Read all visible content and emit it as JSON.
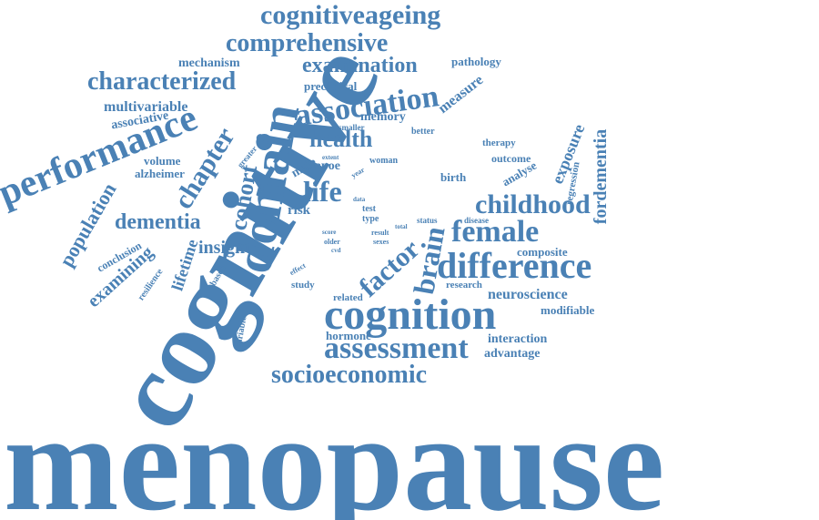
{
  "colors": {
    "word": "#4a81b5",
    "background": "#ffffff"
  },
  "words": [
    "menopause",
    "cognitive",
    "cognition",
    "difference",
    "performance",
    "domain",
    "assessment",
    "socioeconomic",
    "female",
    "childhood",
    "cognitiveageing",
    "comprehensive",
    "characterized",
    "association",
    "examination",
    "health",
    "life",
    "brain",
    "factor",
    "chapter",
    "cohort",
    "population",
    "dementia",
    "fordementia",
    "exposure",
    "insight",
    "lifetime",
    "examining",
    "neuroscience",
    "multivariable",
    "mechanism",
    "measure",
    "memory",
    "pathology",
    "preclinical",
    "associative",
    "alzheimer",
    "volume",
    "conclusion",
    "resilience",
    "based",
    "variable",
    "analyse",
    "regression",
    "composite",
    "modifiable",
    "interaction",
    "advantage",
    "hormone",
    "research",
    "related",
    "study",
    "effect",
    "risk",
    "apoe",
    "male",
    "greater",
    "smaller",
    "better",
    "extent",
    "year",
    "woman",
    "birth",
    "outcome",
    "therapy",
    "test",
    "type",
    "data",
    "status",
    "disease",
    "total",
    "score",
    "older",
    "cvd",
    "result",
    "sexes"
  ]
}
